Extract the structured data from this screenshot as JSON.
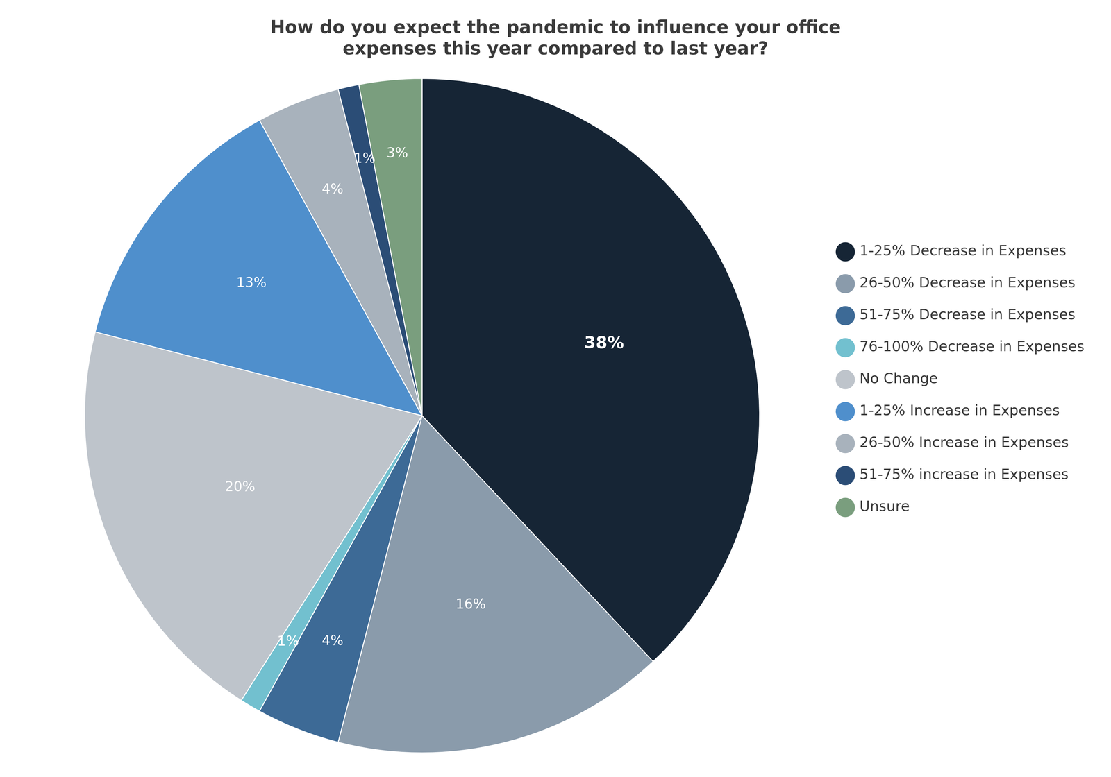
{
  "chart_data": {
    "type": "pie",
    "title": [
      "How do you expect the pandemic to influence your office",
      "expenses this year compared to last year?"
    ],
    "categories": [
      "1-25% Decrease in Expenses",
      "26-50% Decrease in Expenses",
      "51-75% Decrease in Expenses",
      "76-100% Decrease in Expenses",
      "No Change",
      "1-25% Increase in Expenses",
      "26-50% Increase in Expenses",
      "51-75% increase in Expenses",
      "Unsure"
    ],
    "values": [
      38,
      16,
      4,
      1,
      20,
      13,
      4,
      1,
      3
    ],
    "value_labels": [
      "38%",
      "16%",
      "4%",
      "1%",
      "20%",
      "13%",
      "4%",
      "1%",
      "3%"
    ],
    "colors": [
      "#162535",
      "#8a9bab",
      "#3d6a96",
      "#72c0cf",
      "#bec4cb",
      "#4f8fcc",
      "#a8b2bc",
      "#2b4d76",
      "#7a9e7e"
    ],
    "data_labels": true,
    "legend": "right"
  }
}
